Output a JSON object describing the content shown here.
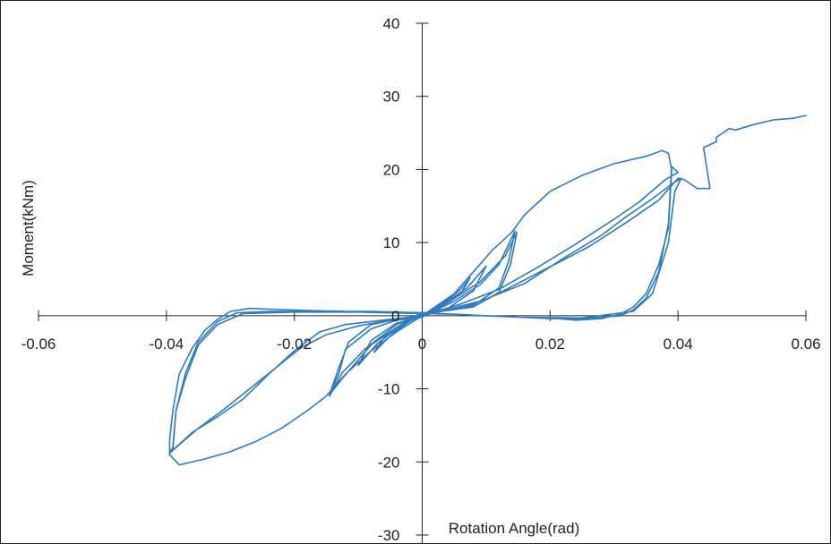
{
  "chart_data": {
    "type": "line",
    "title": "",
    "xlabel": "Rotation Angle(rad)",
    "ylabel": "Moment(kNm)",
    "xlim": [
      -0.06,
      0.06
    ],
    "ylim": [
      -30,
      40
    ],
    "x_ticks": [
      -0.06,
      -0.04,
      -0.02,
      0,
      0.02,
      0.04,
      0.06
    ],
    "x_tick_labels": [
      "-0.06",
      "-0.04",
      "-0.02",
      "0",
      "0.02",
      "0.04",
      "0.06"
    ],
    "y_ticks": [
      -30,
      -20,
      -10,
      0,
      10,
      20,
      30,
      40
    ],
    "y_tick_labels": [
      "-30",
      "-20",
      "-10",
      "0",
      "10",
      "20",
      "30",
      "40"
    ],
    "grid": false,
    "legend": "none",
    "line_color": "#2e7bbf",
    "series": [
      {
        "points": [
          [
            0,
            0
          ],
          [
            0.002,
            1.0
          ],
          [
            0.004,
            2.2
          ],
          [
            0.006,
            3.6
          ],
          [
            0.0075,
            5.2
          ],
          [
            0.006,
            3.0
          ],
          [
            0.002,
            0.6
          ],
          [
            0,
            0.2
          ],
          [
            -0.002,
            -0.8
          ],
          [
            -0.004,
            -2.0
          ],
          [
            -0.006,
            -3.6
          ],
          [
            -0.0075,
            -5.0
          ],
          [
            -0.006,
            -3.0
          ],
          [
            -0.002,
            -0.6
          ],
          [
            0,
            0
          ],
          [
            0.004,
            2.0
          ],
          [
            0.007,
            3.8
          ],
          [
            0.01,
            6.8
          ],
          [
            0.008,
            3.4
          ],
          [
            0.004,
            1.0
          ],
          [
            0,
            0.3
          ],
          [
            -0.004,
            -1.8
          ],
          [
            -0.007,
            -3.8
          ],
          [
            -0.01,
            -6.8
          ],
          [
            -0.008,
            -3.4
          ],
          [
            -0.004,
            -1.0
          ],
          [
            0,
            -0.2
          ],
          [
            0.005,
            2.0
          ],
          [
            0.009,
            4.2
          ],
          [
            0.012,
            7.0
          ],
          [
            0.0145,
            11.6
          ],
          [
            0.0135,
            7.4
          ],
          [
            0.012,
            3.8
          ],
          [
            0.008,
            1.4
          ],
          [
            0.004,
            0.7
          ],
          [
            0,
            0.4
          ],
          [
            -0.004,
            -1.2
          ],
          [
            -0.009,
            -4.6
          ],
          [
            -0.0125,
            -7.8
          ],
          [
            -0.0145,
            -11.0
          ],
          [
            -0.013,
            -7.8
          ],
          [
            -0.012,
            -4.6
          ],
          [
            -0.008,
            -1.8
          ],
          [
            -0.004,
            -0.6
          ],
          [
            0,
            -0.2
          ],
          [
            0.004,
            1.8
          ],
          [
            0.009,
            4.6
          ],
          [
            0.013,
            8.2
          ],
          [
            0.0148,
            11.4
          ],
          [
            0.0138,
            7.0
          ],
          [
            0.012,
            3.2
          ],
          [
            0.008,
            1.2
          ],
          [
            0.003,
            0.6
          ],
          [
            0,
            0.3
          ],
          [
            -0.003,
            -1.0
          ],
          [
            -0.008,
            -4.0
          ],
          [
            -0.0125,
            -8.6
          ],
          [
            -0.0145,
            -10.8
          ],
          [
            -0.013,
            -7.0
          ],
          [
            -0.0115,
            -3.6
          ],
          [
            -0.008,
            -1.2
          ],
          [
            -0.003,
            -0.3
          ],
          [
            0,
            0
          ],
          [
            0.005,
            3.0
          ],
          [
            0.008,
            6.0
          ],
          [
            0.011,
            9.0
          ],
          [
            0.014,
            11.4
          ],
          [
            0.016,
            13.8
          ],
          [
            0.02,
            17.0
          ],
          [
            0.025,
            19.2
          ],
          [
            0.03,
            20.8
          ],
          [
            0.035,
            21.8
          ],
          [
            0.0375,
            22.6
          ],
          [
            0.0385,
            22.2
          ],
          [
            0.039,
            20.0
          ],
          [
            0.0385,
            12.0
          ],
          [
            0.037,
            7.0
          ],
          [
            0.035,
            3.0
          ],
          [
            0.033,
            1.2
          ],
          [
            0.031,
            0.2
          ],
          [
            0.028,
            -0.4
          ],
          [
            0.024,
            -0.6
          ],
          [
            0.02,
            -0.3
          ],
          [
            0.015,
            -0.2
          ],
          [
            0.01,
            0.0
          ],
          [
            0.005,
            0.2
          ],
          [
            0,
            0.4
          ],
          [
            -0.006,
            0.5
          ],
          [
            -0.012,
            0.6
          ],
          [
            -0.018,
            0.7
          ],
          [
            -0.024,
            0.9
          ],
          [
            -0.027,
            1.0
          ],
          [
            -0.03,
            0.6
          ],
          [
            -0.032,
            -0.5
          ],
          [
            -0.034,
            -2.0
          ],
          [
            -0.036,
            -4.5
          ],
          [
            -0.038,
            -8.0
          ],
          [
            -0.039,
            -13.0
          ],
          [
            -0.0395,
            -17.0
          ],
          [
            -0.0395,
            -19.0
          ],
          [
            -0.038,
            -20.4
          ],
          [
            -0.034,
            -19.6
          ],
          [
            -0.03,
            -18.6
          ],
          [
            -0.026,
            -17.2
          ],
          [
            -0.022,
            -15.4
          ],
          [
            -0.018,
            -13.0
          ],
          [
            -0.015,
            -11.0
          ],
          [
            -0.012,
            -8.0
          ],
          [
            -0.008,
            -4.8
          ],
          [
            -0.004,
            -2.2
          ],
          [
            0,
            0
          ],
          [
            0.006,
            1.6
          ],
          [
            0.012,
            3.6
          ],
          [
            0.018,
            6.6
          ],
          [
            0.024,
            9.8
          ],
          [
            0.03,
            13.2
          ],
          [
            0.034,
            15.6
          ],
          [
            0.038,
            18.6
          ],
          [
            0.04,
            19.6
          ],
          [
            0.039,
            20.4
          ],
          [
            0.0385,
            12.6
          ],
          [
            0.037,
            6.0
          ],
          [
            0.035,
            2.4
          ],
          [
            0.033,
            0.8
          ],
          [
            0.031,
            0.0
          ],
          [
            0.025,
            -0.4
          ],
          [
            0.02,
            -0.4
          ],
          [
            0.015,
            -0.2
          ],
          [
            0.01,
            0.0
          ],
          [
            0.005,
            0.2
          ],
          [
            0,
            0.4
          ],
          [
            -0.008,
            0.6
          ],
          [
            -0.016,
            0.6
          ],
          [
            -0.024,
            0.6
          ],
          [
            -0.029,
            0.4
          ],
          [
            -0.032,
            -0.8
          ],
          [
            -0.035,
            -3.6
          ],
          [
            -0.037,
            -7.8
          ],
          [
            -0.0385,
            -13.0
          ],
          [
            -0.039,
            -18.0
          ],
          [
            -0.0395,
            -18.8
          ],
          [
            -0.036,
            -16.0
          ],
          [
            -0.032,
            -13.8
          ],
          [
            -0.028,
            -11.4
          ],
          [
            -0.024,
            -8.0
          ],
          [
            -0.02,
            -4.8
          ],
          [
            -0.016,
            -2.2
          ],
          [
            -0.012,
            -1.2
          ],
          [
            -0.008,
            -0.8
          ],
          [
            -0.004,
            -0.4
          ],
          [
            0,
            0
          ],
          [
            0.008,
            1.6
          ],
          [
            0.016,
            4.4
          ],
          [
            0.022,
            7.8
          ],
          [
            0.028,
            11.0
          ],
          [
            0.032,
            13.6
          ],
          [
            0.036,
            16.0
          ],
          [
            0.039,
            18.0
          ],
          [
            0.0405,
            18.8
          ],
          [
            0.0395,
            17.0
          ],
          [
            0.0385,
            10.0
          ],
          [
            0.036,
            3.0
          ],
          [
            0.033,
            0.6
          ],
          [
            0.025,
            -0.3
          ],
          [
            0.015,
            -0.2
          ],
          [
            0.005,
            0.2
          ],
          [
            0,
            0.3
          ],
          [
            -0.01,
            0.5
          ],
          [
            -0.02,
            0.5
          ],
          [
            -0.028,
            0.3
          ],
          [
            -0.032,
            -1.2
          ],
          [
            -0.035,
            -4.0
          ],
          [
            -0.037,
            -8.5
          ],
          [
            -0.0385,
            -13.0
          ],
          [
            -0.039,
            -18.4
          ],
          [
            -0.035,
            -15.4
          ],
          [
            -0.031,
            -12.8
          ],
          [
            -0.027,
            -10.0
          ],
          [
            -0.023,
            -7.2
          ],
          [
            -0.019,
            -4.4
          ],
          [
            -0.015,
            -2.6
          ],
          [
            -0.01,
            -1.4
          ],
          [
            -0.005,
            -0.6
          ],
          [
            0,
            0
          ],
          [
            0.01,
            2.2
          ],
          [
            0.018,
            5.8
          ],
          [
            0.026,
            9.4
          ],
          [
            0.032,
            12.8
          ],
          [
            0.037,
            15.8
          ],
          [
            0.04,
            18.8
          ],
          [
            0.041,
            18.6
          ],
          [
            0.043,
            17.4
          ],
          [
            0.045,
            17.4
          ],
          [
            0.044,
            23.0
          ],
          [
            0.046,
            23.8
          ],
          [
            0.046,
            24.4
          ],
          [
            0.048,
            25.6
          ],
          [
            0.049,
            25.4
          ],
          [
            0.052,
            26.2
          ],
          [
            0.055,
            26.8
          ],
          [
            0.058,
            27.0
          ],
          [
            0.06,
            27.4
          ]
        ]
      }
    ]
  }
}
